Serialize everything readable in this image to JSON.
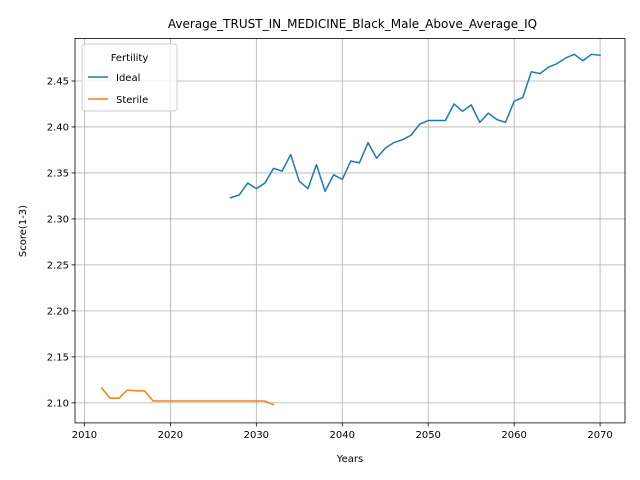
{
  "chart_data": {
    "type": "line",
    "title": "Average_TRUST_IN_MEDICINE_Black_Male_Above_Average_IQ",
    "xlabel": "Years",
    "ylabel": "Score(1-3)",
    "xlim": [
      2008.9,
      2072.9
    ],
    "ylim": [
      2.0782,
      2.4963
    ],
    "xticks": [
      2010,
      2020,
      2030,
      2040,
      2050,
      2060,
      2070
    ],
    "yticks": [
      2.1,
      2.15,
      2.2,
      2.25,
      2.3,
      2.35,
      2.4,
      2.45
    ],
    "ytick_labels": [
      "2.10",
      "2.15",
      "2.20",
      "2.25",
      "2.30",
      "2.35",
      "2.40",
      "2.45"
    ],
    "grid": true,
    "legend": {
      "title": "Fertility",
      "placement": "upper-left"
    },
    "series": [
      {
        "name": "Ideal",
        "color": "#1f77b4",
        "x": [
          2027,
          2028,
          2029,
          2030,
          2031,
          2032,
          2033,
          2034,
          2035,
          2036,
          2037,
          2038,
          2039,
          2040,
          2041,
          2042,
          2043,
          2044,
          2045,
          2046,
          2047,
          2048,
          2049,
          2050,
          2051,
          2052,
          2053,
          2054,
          2055,
          2056,
          2057,
          2058,
          2059,
          2060,
          2061,
          2062,
          2063,
          2064,
          2065,
          2066,
          2067,
          2068,
          2069,
          2070
        ],
        "y": [
          2.323,
          2.326,
          2.339,
          2.333,
          2.339,
          2.355,
          2.352,
          2.37,
          2.341,
          2.333,
          2.359,
          2.33,
          2.348,
          2.343,
          2.363,
          2.361,
          2.383,
          2.366,
          2.377,
          2.383,
          2.386,
          2.391,
          2.403,
          2.407,
          2.407,
          2.407,
          2.425,
          2.417,
          2.424,
          2.405,
          2.415,
          2.408,
          2.405,
          2.428,
          2.432,
          2.46,
          2.458,
          2.465,
          2.469,
          2.475,
          2.479,
          2.472,
          2.479,
          2.478
        ]
      },
      {
        "name": "Sterile",
        "color": "#ff7f0e",
        "x": [
          2012,
          2013,
          2014,
          2015,
          2016,
          2017,
          2018,
          2019,
          2020,
          2021,
          2022,
          2023,
          2024,
          2025,
          2026,
          2027,
          2028,
          2029,
          2030,
          2031,
          2032
        ],
        "y": [
          2.116,
          2.105,
          2.105,
          2.114,
          2.113,
          2.113,
          2.102,
          2.102,
          2.102,
          2.102,
          2.102,
          2.102,
          2.102,
          2.102,
          2.102,
          2.102,
          2.102,
          2.102,
          2.102,
          2.102,
          2.098
        ]
      }
    ]
  }
}
